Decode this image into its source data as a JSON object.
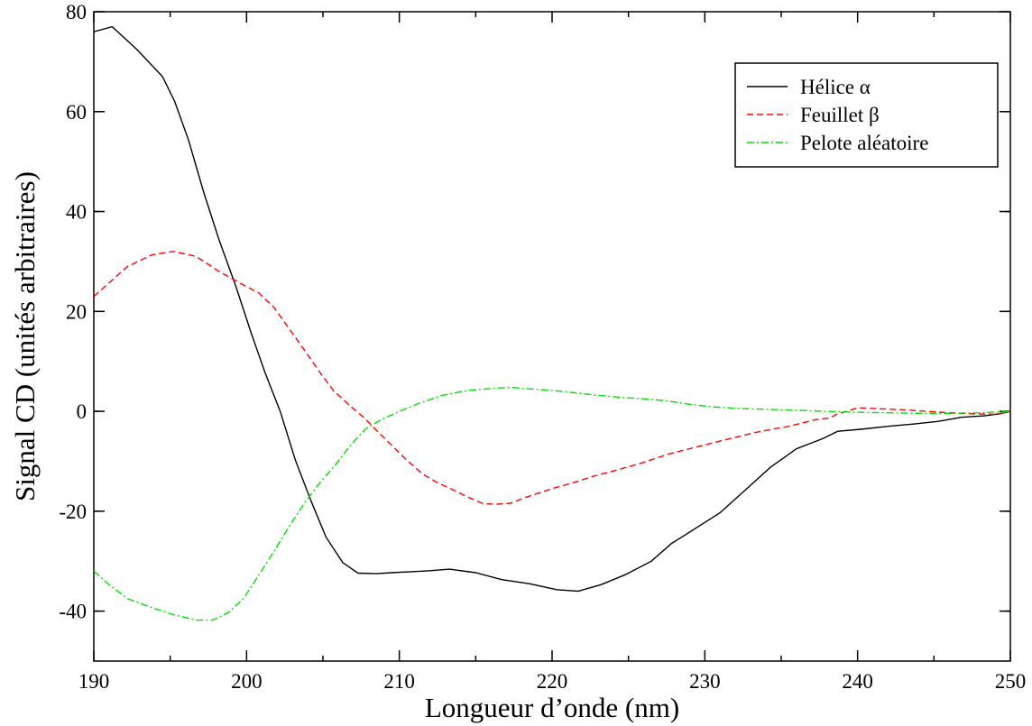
{
  "chart_data": {
    "type": "line",
    "title": "",
    "xlabel": "Longueur d’onde (nm)",
    "ylabel": "Signal CD (unités arbitraires)",
    "xlim": [
      190,
      250
    ],
    "ylim": [
      -50,
      80
    ],
    "xticks": [
      190,
      200,
      210,
      220,
      230,
      240,
      250
    ],
    "yticks": [
      -40,
      -20,
      0,
      20,
      40,
      60,
      80
    ],
    "grid": false,
    "legend_position": "top-right",
    "series": [
      {
        "name": "Hélice α",
        "color": "#000000",
        "dash": "solid",
        "x": [
          190,
          191.2,
          192.8,
          194.5,
          195.3,
          196.2,
          197.2,
          198.2,
          199.3,
          200.3,
          201.2,
          202.2,
          203.2,
          204.2,
          205.2,
          206.3,
          207.3,
          208.5,
          209.5,
          210.8,
          212,
          213.3,
          215,
          216.7,
          218.5,
          220.3,
          221.7,
          223.2,
          224.8,
          226.5,
          227.8,
          229.3,
          231,
          232.7,
          234.3,
          236,
          237.7,
          238.7,
          240.2,
          242,
          243.8,
          245.3,
          246.8,
          248.3,
          249.3,
          250
        ],
        "y": [
          76,
          77,
          72.5,
          67,
          62,
          54.3,
          43.8,
          34.3,
          25,
          15.7,
          7.8,
          0,
          -9.8,
          -17.8,
          -25.2,
          -30.3,
          -32.4,
          -32.5,
          -32.3,
          -32.1,
          -31.9,
          -31.6,
          -32.3,
          -33.7,
          -34.5,
          -35.7,
          -36,
          -34.7,
          -32.7,
          -30,
          -26.5,
          -23.6,
          -20.3,
          -15.6,
          -11.2,
          -7.5,
          -5.5,
          -4,
          -3.6,
          -3,
          -2.5,
          -2,
          -1.2,
          -0.9,
          -0.5,
          0
        ]
      },
      {
        "name": "Feuillet β",
        "color": "#ff0000",
        "dash": "dashed",
        "x": [
          190,
          191.1,
          192.2,
          193.8,
          195.2,
          196.7,
          198.2,
          199.8,
          200.8,
          201.8,
          202.8,
          203.8,
          204.8,
          205.7,
          206.7,
          207.7,
          208.5,
          209.5,
          210.5,
          211.5,
          212.5,
          213.5,
          214.5,
          215.5,
          216.3,
          217.3,
          218.2,
          219.3,
          220.3,
          221.5,
          222.7,
          224.2,
          225.8,
          227.7,
          229.5,
          231.2,
          233.5,
          235.5,
          237.2,
          238.2,
          238.7,
          239.3,
          240,
          241.5,
          243,
          244.5,
          246,
          247.5,
          249,
          250
        ],
        "y": [
          23,
          26,
          29,
          31.3,
          32,
          31,
          28,
          25.3,
          23.7,
          20.8,
          16.5,
          12.2,
          7.8,
          4.1,
          1.3,
          -1.3,
          -3.8,
          -6.8,
          -9.8,
          -12.5,
          -14.3,
          -15.7,
          -17.2,
          -18.5,
          -18.6,
          -18.4,
          -17.3,
          -16.2,
          -15.2,
          -14.2,
          -13,
          -11.8,
          -10.4,
          -8.5,
          -7.1,
          -5.8,
          -4.1,
          -3,
          -1.7,
          -1.3,
          -0.5,
          0,
          0.7,
          0.5,
          0.3,
          0,
          -0.3,
          -0.5,
          -0.6,
          0
        ]
      },
      {
        "name": "Pelote aléatoire",
        "color": "#00e000",
        "dash": "dash-dot",
        "x": [
          190,
          191,
          192.2,
          193.7,
          195.2,
          196.7,
          197.8,
          198.8,
          199.8,
          200.8,
          201.8,
          202.8,
          203.8,
          204.8,
          205.8,
          206.8,
          207.8,
          208.8,
          210,
          211.3,
          212.8,
          214.5,
          216.2,
          217.2,
          218.5,
          220,
          221.5,
          223,
          224.5,
          226,
          227.5,
          229,
          230.5,
          232,
          234,
          236,
          238,
          240,
          242,
          244,
          246,
          248,
          250
        ],
        "y": [
          -32,
          -34.7,
          -37.5,
          -39.2,
          -40.7,
          -41.8,
          -41.8,
          -40.3,
          -37.5,
          -32.8,
          -28,
          -23,
          -18.3,
          -14.3,
          -10.8,
          -6.8,
          -3.5,
          -1.7,
          0,
          1.6,
          3.2,
          4.2,
          4.6,
          4.8,
          4.5,
          4.2,
          3.7,
          3.2,
          2.8,
          2.5,
          2.1,
          1.4,
          0.9,
          0.6,
          0.4,
          0.2,
          0,
          -0.2,
          -0.3,
          -0.4,
          -0.4,
          -0.3,
          0
        ]
      }
    ]
  }
}
